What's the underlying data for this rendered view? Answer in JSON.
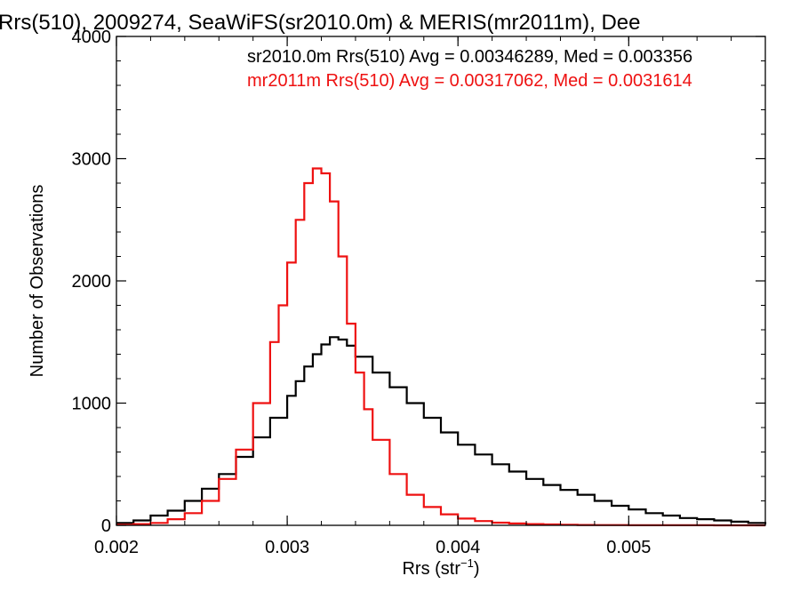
{
  "chart_data": {
    "type": "line",
    "step": true,
    "title": "Rrs(510), 2009274, SeaWiFS(sr2010.0m) & MERIS(mr2011m), Dee",
    "xlabel": "Rrs (str",
    "xlabel_sup": "−1",
    "xlabel_end": ")",
    "ylabel": "Number of Observations",
    "xlim": [
      0.002,
      0.0058
    ],
    "ylim": [
      0,
      4000
    ],
    "xticks": [
      0.002,
      0.003,
      0.004,
      0.005
    ],
    "xtick_labels": [
      "0.002",
      "0.003",
      "0.004",
      "0.005"
    ],
    "yticks": [
      0,
      1000,
      2000,
      3000,
      4000
    ],
    "ytick_labels": [
      "0",
      "1000",
      "2000",
      "3000",
      "4000"
    ],
    "grid": false,
    "legend_position": "top-right",
    "series": [
      {
        "name": "sr2010.0m Rrs(510) Avg = 0.00346289, Med = 0.003356",
        "color": "#000000",
        "x": [
          0.002,
          0.0021,
          0.0022,
          0.0023,
          0.0024,
          0.0025,
          0.0026,
          0.0027,
          0.0028,
          0.0029,
          0.003,
          0.00305,
          0.0031,
          0.00315,
          0.0032,
          0.00325,
          0.0033,
          0.00335,
          0.0034,
          0.0035,
          0.0036,
          0.0037,
          0.0038,
          0.0039,
          0.004,
          0.0041,
          0.0042,
          0.0043,
          0.0044,
          0.0045,
          0.0046,
          0.0047,
          0.0048,
          0.0049,
          0.005,
          0.0051,
          0.0052,
          0.0053,
          0.0054,
          0.0055,
          0.0056,
          0.0057,
          0.0058
        ],
        "y": [
          20,
          40,
          80,
          120,
          200,
          300,
          420,
          560,
          720,
          880,
          1060,
          1180,
          1300,
          1400,
          1480,
          1540,
          1520,
          1470,
          1380,
          1250,
          1130,
          1000,
          880,
          760,
          660,
          580,
          500,
          440,
          380,
          330,
          290,
          250,
          200,
          160,
          130,
          100,
          80,
          60,
          50,
          40,
          30,
          20,
          10
        ]
      },
      {
        "name": "mr2011m Rrs(510) Avg = 0.00317062, Med = 0.0031614",
        "color": "#ee1111",
        "x": [
          0.002,
          0.0021,
          0.0022,
          0.0023,
          0.0024,
          0.0025,
          0.0026,
          0.0027,
          0.0028,
          0.0029,
          0.00295,
          0.003,
          0.00305,
          0.0031,
          0.00315,
          0.0032,
          0.00325,
          0.0033,
          0.00335,
          0.0034,
          0.00345,
          0.0035,
          0.0036,
          0.0037,
          0.0038,
          0.0039,
          0.004,
          0.0041,
          0.0042,
          0.0043,
          0.0044,
          0.0045,
          0.0046,
          0.0047,
          0.0048,
          0.005,
          0.0052,
          0.0055,
          0.0058
        ],
        "y": [
          5,
          10,
          20,
          50,
          100,
          200,
          380,
          620,
          1000,
          1500,
          1800,
          2150,
          2500,
          2800,
          2920,
          2880,
          2650,
          2200,
          1650,
          1250,
          950,
          700,
          420,
          250,
          150,
          90,
          55,
          35,
          22,
          15,
          10,
          7,
          5,
          3,
          2,
          1,
          1,
          0,
          0
        ]
      }
    ]
  }
}
